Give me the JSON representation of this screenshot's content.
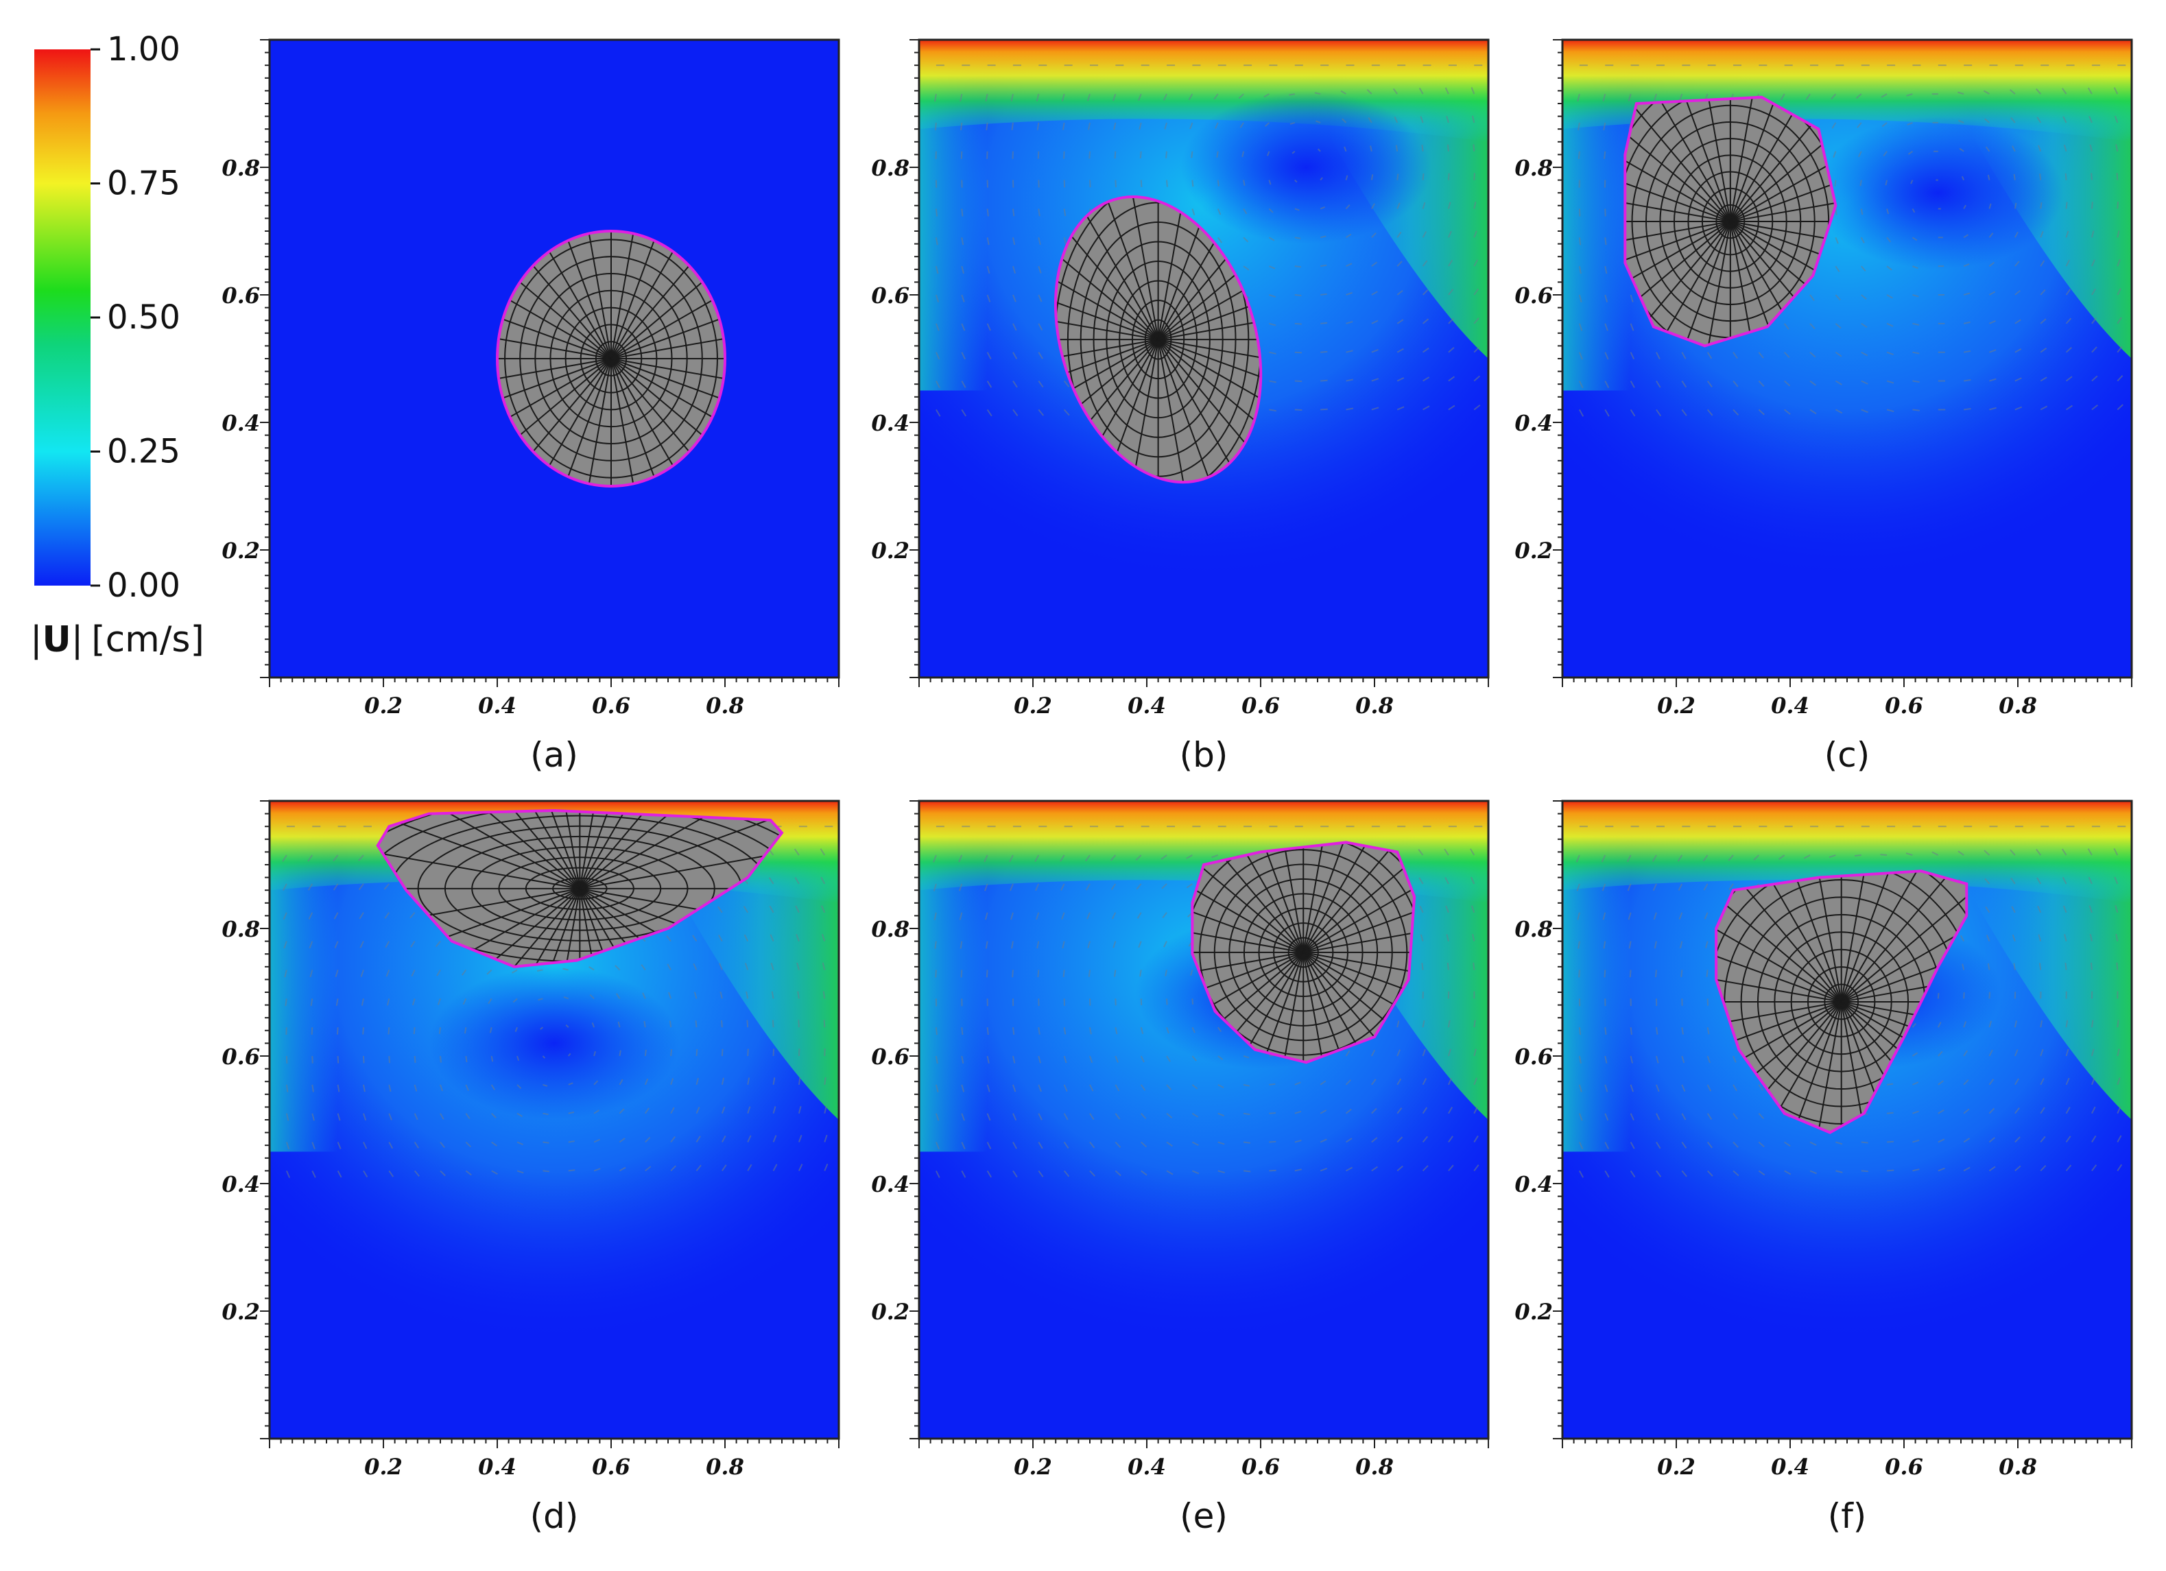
{
  "chart_data": {
    "type": "heatmap",
    "colorbar": {
      "title_abs_left": "|",
      "title_symbol": "U",
      "title_abs_right": "|",
      "title_units": "[cm/s]",
      "range": [
        0,
        1
      ],
      "ticks": [
        {
          "value": 0.0,
          "label": "0.00"
        },
        {
          "value": 0.25,
          "label": "0.25"
        },
        {
          "value": 0.5,
          "label": "0.50"
        },
        {
          "value": 0.75,
          "label": "0.75"
        },
        {
          "value": 1.0,
          "label": "1.00"
        }
      ],
      "colors": [
        {
          "stop": 0.0,
          "color": "#0a1ff5"
        },
        {
          "stop": 0.25,
          "color": "#12e6f2"
        },
        {
          "stop": 0.45,
          "color": "#0fd47a"
        },
        {
          "stop": 0.55,
          "color": "#1ddc1d"
        },
        {
          "stop": 0.75,
          "color": "#f3f224"
        },
        {
          "stop": 0.88,
          "color": "#f59a12"
        },
        {
          "stop": 1.0,
          "color": "#ef1414"
        }
      ]
    },
    "axes": {
      "xlim": [
        0,
        1
      ],
      "ylim": [
        0,
        1
      ],
      "x_ticks": [
        "0.2",
        "0.4",
        "0.6",
        "0.8"
      ],
      "y_ticks": [
        "0.2",
        "0.4",
        "0.6",
        "0.8"
      ]
    },
    "colors": {
      "background": "#0a1ff5",
      "solid": "#8a8a8a",
      "solid_outline": "#e020e0",
      "mesh": "#1a1a1a",
      "arrow": "#6b7c8c"
    },
    "panels": [
      {
        "label": "(a)",
        "flow": "none",
        "solid": {
          "center": [
            0.6,
            0.5
          ],
          "rx": 0.2,
          "ry": 0.2,
          "shape": "ellipse",
          "rotation": 0
        }
      },
      {
        "label": "(b)",
        "flow": "cavity",
        "vortex": [
          0.68,
          0.8
        ],
        "solid": {
          "center": [
            0.42,
            0.53
          ],
          "rx": 0.17,
          "ry": 0.23,
          "shape": "ellipse",
          "rotation": -18
        }
      },
      {
        "label": "(c)",
        "flow": "cavity",
        "vortex": [
          0.66,
          0.76
        ],
        "solid": {
          "points": [
            [
              0.13,
              0.9
            ],
            [
              0.35,
              0.91
            ],
            [
              0.45,
              0.86
            ],
            [
              0.48,
              0.74
            ],
            [
              0.44,
              0.63
            ],
            [
              0.36,
              0.55
            ],
            [
              0.25,
              0.52
            ],
            [
              0.16,
              0.55
            ],
            [
              0.11,
              0.65
            ],
            [
              0.11,
              0.82
            ]
          ]
        }
      },
      {
        "label": "(d)",
        "flow": "cavity",
        "vortex": [
          0.5,
          0.62
        ],
        "solid": {
          "points": [
            [
              0.21,
              0.96
            ],
            [
              0.28,
              0.98
            ],
            [
              0.5,
              0.985
            ],
            [
              0.88,
              0.97
            ],
            [
              0.9,
              0.95
            ],
            [
              0.84,
              0.88
            ],
            [
              0.7,
              0.8
            ],
            [
              0.54,
              0.75
            ],
            [
              0.43,
              0.74
            ],
            [
              0.32,
              0.78
            ],
            [
              0.24,
              0.86
            ],
            [
              0.19,
              0.93
            ]
          ]
        }
      },
      {
        "label": "(e)",
        "flow": "cavity",
        "vortex": [
          0.6,
          0.7
        ],
        "solid": {
          "points": [
            [
              0.5,
              0.9
            ],
            [
              0.6,
              0.92
            ],
            [
              0.75,
              0.935
            ],
            [
              0.84,
              0.92
            ],
            [
              0.87,
              0.85
            ],
            [
              0.86,
              0.72
            ],
            [
              0.8,
              0.63
            ],
            [
              0.68,
              0.59
            ],
            [
              0.59,
              0.61
            ],
            [
              0.52,
              0.67
            ],
            [
              0.48,
              0.76
            ],
            [
              0.48,
              0.84
            ]
          ]
        }
      },
      {
        "label": "(f)",
        "flow": "cavity",
        "vortex": [
          0.55,
          0.7
        ],
        "solid": {
          "points": [
            [
              0.3,
              0.86
            ],
            [
              0.45,
              0.88
            ],
            [
              0.63,
              0.89
            ],
            [
              0.71,
              0.87
            ],
            [
              0.71,
              0.82
            ],
            [
              0.66,
              0.74
            ],
            [
              0.6,
              0.63
            ],
            [
              0.53,
              0.51
            ],
            [
              0.47,
              0.48
            ],
            [
              0.39,
              0.51
            ],
            [
              0.31,
              0.61
            ],
            [
              0.27,
              0.72
            ],
            [
              0.27,
              0.8
            ]
          ]
        }
      }
    ]
  }
}
